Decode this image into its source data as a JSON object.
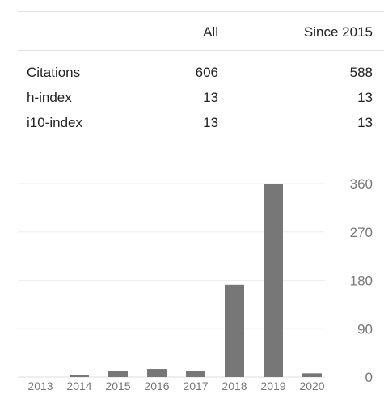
{
  "stats_table": {
    "columns": [
      "",
      "All",
      "Since 2015"
    ],
    "rows": [
      {
        "label": "Citations",
        "all": "606",
        "since": "588"
      },
      {
        "label": "h-index",
        "all": "13",
        "since": "13"
      },
      {
        "label": "i10-index",
        "all": "13",
        "since": "13"
      }
    ]
  },
  "chart_data": {
    "type": "bar",
    "categories": [
      "2013",
      "2014",
      "2015",
      "2016",
      "2017",
      "2018",
      "2019",
      "2020"
    ],
    "values": [
      0,
      4,
      11,
      15,
      12,
      172,
      360,
      7
    ],
    "ylim": [
      0,
      360
    ],
    "yticks": [
      "0",
      "90",
      "180",
      "270",
      "360"
    ],
    "grid": true,
    "y_axis_side": "right",
    "bar_color": "#777777"
  }
}
